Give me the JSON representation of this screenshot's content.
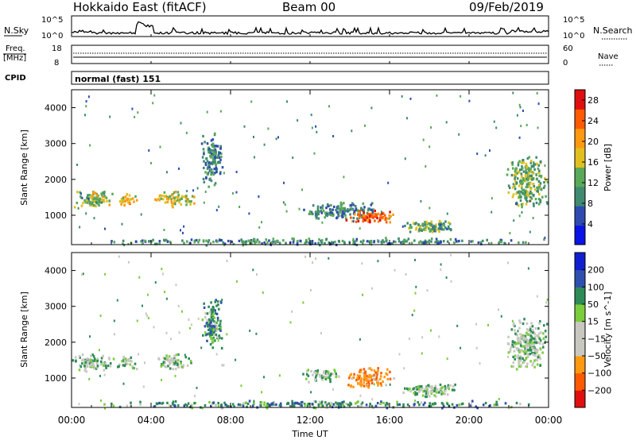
{
  "header": {
    "station": "Hokkaido East (fitACF)",
    "beam": "Beam 00",
    "date": "09/Feb/2019"
  },
  "noise_panel": {
    "left_label": "N.Sky",
    "right_label": "N.Search",
    "ticks": [
      "10^5",
      "10^0"
    ]
  },
  "freq_panel": {
    "left_label": "Freq.",
    "left_unit": "[MHz]",
    "right_label": "Nave",
    "left_ticks": [
      "18",
      "8"
    ],
    "right_ticks": [
      "60",
      "0"
    ]
  },
  "cpid_panel": {
    "label": "CPID",
    "value": "normal (fast) 151"
  },
  "time_axis": {
    "title": "Time UT",
    "ticks": [
      "00:00",
      "04:00",
      "08:00",
      "12:00",
      "16:00",
      "20:00",
      "00:00"
    ]
  },
  "colors": {
    "power": [
      "#0a14e6",
      "#2f4bb0",
      "#3f8a70",
      "#5aa85a",
      "#e0c020",
      "#ff9a10",
      "#ff5a00",
      "#e01010"
    ],
    "velocity": [
      "#e01010",
      "#ff5a00",
      "#ff9a10",
      "#c8c8c0",
      "#c8c8c0",
      "#7ccd3c",
      "#2e8b57",
      "#3050b0",
      "#1020d0"
    ]
  },
  "chart_data": [
    {
      "type": "heatmap",
      "title": "",
      "xlabel": "Time UT",
      "ylabel": "Slant Range [km]",
      "xlim": [
        "00:00",
        "24:00"
      ],
      "ylim": [
        180,
        4500
      ],
      "y_ticks": [
        "1000",
        "2000",
        "3000",
        "4000"
      ],
      "colorbar": {
        "label": "Power [dB]",
        "ticks": [
          "4",
          "8",
          "12",
          "16",
          "20",
          "24",
          "28"
        ],
        "range": [
          0,
          30
        ]
      },
      "echo_regions": [
        {
          "t": [
            0.0,
            2.1
          ],
          "r": [
            1200,
            1750
          ],
          "level": 15
        },
        {
          "t": [
            2.2,
            3.3
          ],
          "r": [
            1250,
            1650
          ],
          "level": 18
        },
        {
          "t": [
            4.0,
            6.2
          ],
          "r": [
            1250,
            1700
          ],
          "level": 17
        },
        {
          "t": [
            6.5,
            7.6
          ],
          "r": [
            1800,
            3400
          ],
          "level": 9
        },
        {
          "t": [
            11.5,
            15.5
          ],
          "r": [
            900,
            1400
          ],
          "level": 9
        },
        {
          "t": [
            13.6,
            16.3
          ],
          "r": [
            800,
            1200
          ],
          "level": 24
        },
        {
          "t": [
            16.3,
            19.5
          ],
          "r": [
            500,
            900
          ],
          "level": 12
        },
        {
          "t": [
            21.8,
            24.0
          ],
          "r": [
            1200,
            2700
          ],
          "level": 13
        },
        {
          "t": [
            0.0,
            24.0
          ],
          "r": [
            180,
            400
          ],
          "level": 10
        }
      ]
    },
    {
      "type": "heatmap",
      "title": "",
      "xlabel": "Time UT",
      "ylabel": "Slant Range [km]",
      "xlim": [
        "00:00",
        "24:00"
      ],
      "ylim": [
        180,
        4500
      ],
      "y_ticks": [
        "1000",
        "2000",
        "3000",
        "4000"
      ],
      "colorbar": {
        "label": "Velocity [m s^-1]",
        "ticks": [
          "200",
          "100",
          "50",
          "15",
          "−15",
          "−50",
          "−100",
          "−200"
        ],
        "range": [
          -250,
          250
        ]
      },
      "echo_regions": [
        {
          "t": [
            0.0,
            2.1
          ],
          "r": [
            1200,
            1750
          ],
          "velocity": 0
        },
        {
          "t": [
            2.2,
            3.3
          ],
          "r": [
            1250,
            1650
          ],
          "velocity": 0
        },
        {
          "t": [
            4.0,
            6.2
          ],
          "r": [
            1250,
            1700
          ],
          "velocity": 0
        },
        {
          "t": [
            6.5,
            7.6
          ],
          "r": [
            1800,
            3400
          ],
          "velocity": 30
        },
        {
          "t": [
            11.5,
            13.6
          ],
          "r": [
            900,
            1300
          ],
          "velocity": 0
        },
        {
          "t": [
            13.8,
            16.2
          ],
          "r": [
            750,
            1350
          ],
          "velocity": -80
        },
        {
          "t": [
            16.3,
            19.5
          ],
          "r": [
            500,
            900
          ],
          "velocity": 10
        },
        {
          "t": [
            21.8,
            24.0
          ],
          "r": [
            1200,
            2700
          ],
          "velocity": 0
        },
        {
          "t": [
            0.0,
            24.0
          ],
          "r": [
            180,
            400
          ],
          "velocity": 30
        }
      ]
    }
  ]
}
